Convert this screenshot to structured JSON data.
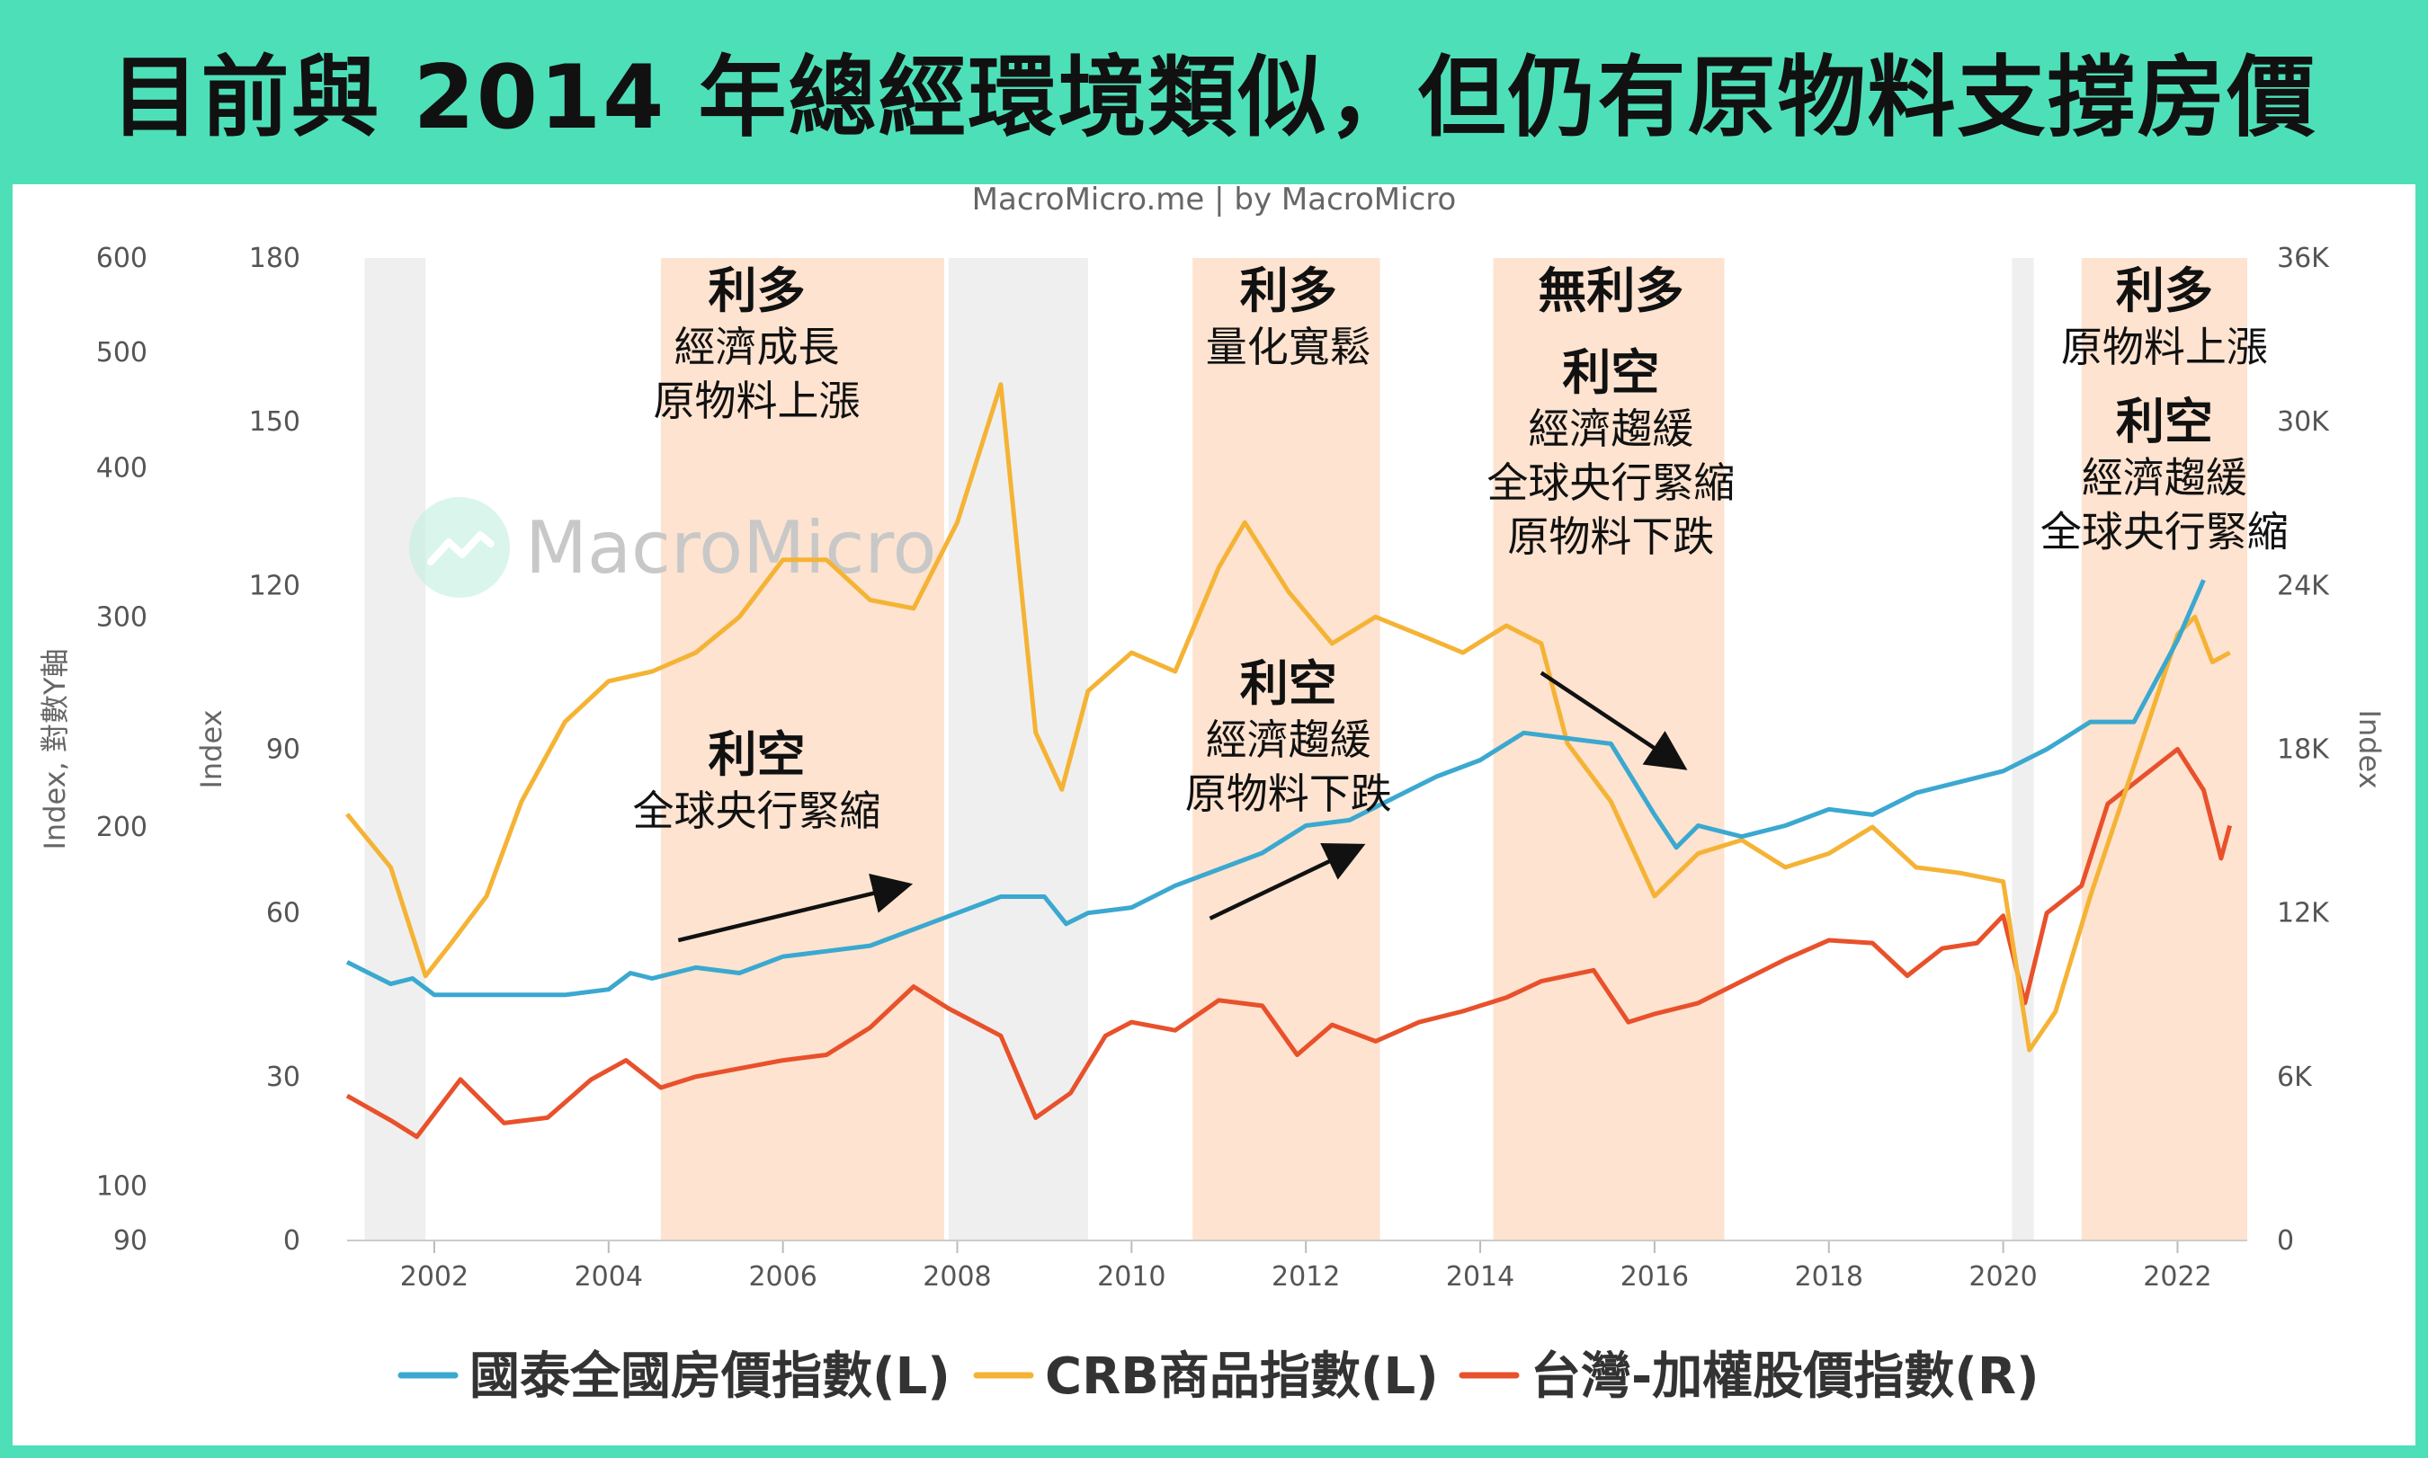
{
  "page": {
    "title": "目前與 2014 年總經環境類似，但仍有原物料支撐房價",
    "credit": "MacroMicro.me | by MacroMicro",
    "watermark": "MacroMicro"
  },
  "colors": {
    "house": "#3ba8d0",
    "crb": "#f5b335",
    "taiex": "#e8512b",
    "highlight": "#fde3d0",
    "recession": "#efefef"
  },
  "chart_data": {
    "type": "line",
    "axes": {
      "left_outer": {
        "title": "Index, 對數Y軸",
        "ticks": [
          "600",
          "500",
          "400",
          "300",
          "200",
          "100",
          "90"
        ],
        "scale": "log",
        "range": [
          90,
          600
        ]
      },
      "left_inner": {
        "title": "Index",
        "ticks": [
          "180",
          "150",
          "120",
          "90",
          "60",
          "30",
          "0"
        ],
        "range": [
          0,
          180
        ]
      },
      "right": {
        "title": "Index",
        "ticks": [
          "36K",
          "30K",
          "24K",
          "18K",
          "12K",
          "6K",
          "0"
        ],
        "range": [
          0,
          36000
        ]
      },
      "x": {
        "ticks": [
          "2002",
          "2004",
          "2006",
          "2008",
          "2010",
          "2012",
          "2014",
          "2016",
          "2018",
          "2020",
          "2022"
        ],
        "range": [
          2001.0,
          2022.8
        ]
      }
    },
    "recession_bands": [
      [
        2001.2,
        2001.9
      ],
      [
        2007.9,
        2009.5
      ],
      [
        2020.1,
        2020.35
      ]
    ],
    "highlight_bands": [
      [
        2004.6,
        2007.85
      ],
      [
        2010.7,
        2012.85
      ],
      [
        2014.15,
        2016.8
      ],
      [
        2020.9,
        2022.9
      ]
    ],
    "series": [
      {
        "name": "國泰全國房價指數(L)",
        "axis": "left_inner",
        "color": "#3ba8d0",
        "points": [
          [
            2001.0,
            51
          ],
          [
            2001.25,
            49
          ],
          [
            2001.5,
            47
          ],
          [
            2001.75,
            48
          ],
          [
            2002.0,
            45
          ],
          [
            2002.5,
            45
          ],
          [
            2003.0,
            45
          ],
          [
            2003.5,
            45
          ],
          [
            2004.0,
            46
          ],
          [
            2004.25,
            49
          ],
          [
            2004.5,
            48
          ],
          [
            2005.0,
            50
          ],
          [
            2005.5,
            49
          ],
          [
            2006.0,
            52
          ],
          [
            2006.5,
            53
          ],
          [
            2007.0,
            54
          ],
          [
            2007.5,
            57
          ],
          [
            2008.0,
            60
          ],
          [
            2008.5,
            63
          ],
          [
            2009.0,
            63
          ],
          [
            2009.25,
            58
          ],
          [
            2009.5,
            60
          ],
          [
            2010.0,
            61
          ],
          [
            2010.5,
            65
          ],
          [
            2011.0,
            68
          ],
          [
            2011.5,
            71
          ],
          [
            2012.0,
            76
          ],
          [
            2012.5,
            77
          ],
          [
            2013.0,
            81
          ],
          [
            2013.5,
            85
          ],
          [
            2014.0,
            88
          ],
          [
            2014.5,
            93
          ],
          [
            2015.0,
            92
          ],
          [
            2015.5,
            91
          ],
          [
            2016.0,
            78
          ],
          [
            2016.25,
            72
          ],
          [
            2016.5,
            76
          ],
          [
            2017.0,
            74
          ],
          [
            2017.5,
            76
          ],
          [
            2018.0,
            79
          ],
          [
            2018.5,
            78
          ],
          [
            2019.0,
            82
          ],
          [
            2019.5,
            84
          ],
          [
            2020.0,
            86
          ],
          [
            2020.5,
            90
          ],
          [
            2021.0,
            95
          ],
          [
            2021.5,
            95
          ],
          [
            2022.0,
            110
          ],
          [
            2022.3,
            121
          ]
        ]
      },
      {
        "name": "CRB商品指數(L)",
        "axis": "left_outer",
        "color": "#f5b335",
        "points": [
          [
            2001.0,
            205
          ],
          [
            2001.5,
            185
          ],
          [
            2001.9,
            150
          ],
          [
            2002.2,
            160
          ],
          [
            2002.6,
            175
          ],
          [
            2003.0,
            210
          ],
          [
            2003.5,
            245
          ],
          [
            2004.0,
            265
          ],
          [
            2004.5,
            270
          ],
          [
            2005.0,
            280
          ],
          [
            2005.5,
            300
          ],
          [
            2006.0,
            335
          ],
          [
            2006.5,
            335
          ],
          [
            2007.0,
            310
          ],
          [
            2007.5,
            305
          ],
          [
            2008.0,
            360
          ],
          [
            2008.5,
            470
          ],
          [
            2008.9,
            240
          ],
          [
            2009.2,
            215
          ],
          [
            2009.5,
            260
          ],
          [
            2010.0,
            280
          ],
          [
            2010.5,
            270
          ],
          [
            2011.0,
            330
          ],
          [
            2011.3,
            360
          ],
          [
            2011.8,
            315
          ],
          [
            2012.3,
            285
          ],
          [
            2012.8,
            300
          ],
          [
            2013.3,
            290
          ],
          [
            2013.8,
            280
          ],
          [
            2014.3,
            295
          ],
          [
            2014.7,
            285
          ],
          [
            2015.0,
            235
          ],
          [
            2015.5,
            210
          ],
          [
            2016.0,
            175
          ],
          [
            2016.5,
            190
          ],
          [
            2017.0,
            195
          ],
          [
            2017.5,
            185
          ],
          [
            2018.0,
            190
          ],
          [
            2018.5,
            200
          ],
          [
            2019.0,
            185
          ],
          [
            2019.5,
            183
          ],
          [
            2020.0,
            180
          ],
          [
            2020.3,
            130
          ],
          [
            2020.6,
            140
          ],
          [
            2021.0,
            175
          ],
          [
            2021.5,
            225
          ],
          [
            2022.0,
            290
          ],
          [
            2022.2,
            300
          ],
          [
            2022.4,
            275
          ],
          [
            2022.6,
            280
          ]
        ]
      },
      {
        "name": "台灣-加權股價指數(R)",
        "axis": "right",
        "color": "#e8512b",
        "points": [
          [
            2001.0,
            5300
          ],
          [
            2001.5,
            4400
          ],
          [
            2001.8,
            3800
          ],
          [
            2002.3,
            5900
          ],
          [
            2002.8,
            4300
          ],
          [
            2003.3,
            4500
          ],
          [
            2003.8,
            5900
          ],
          [
            2004.2,
            6600
          ],
          [
            2004.6,
            5600
          ],
          [
            2005.0,
            6000
          ],
          [
            2005.5,
            6300
          ],
          [
            2006.0,
            6600
          ],
          [
            2006.5,
            6800
          ],
          [
            2007.0,
            7800
          ],
          [
            2007.5,
            9300
          ],
          [
            2007.9,
            8500
          ],
          [
            2008.5,
            7500
          ],
          [
            2008.9,
            4500
          ],
          [
            2009.3,
            5400
          ],
          [
            2009.7,
            7500
          ],
          [
            2010.0,
            8000
          ],
          [
            2010.5,
            7700
          ],
          [
            2011.0,
            8800
          ],
          [
            2011.5,
            8600
          ],
          [
            2011.9,
            6800
          ],
          [
            2012.3,
            7900
          ],
          [
            2012.8,
            7300
          ],
          [
            2013.3,
            8000
          ],
          [
            2013.8,
            8400
          ],
          [
            2014.3,
            8900
          ],
          [
            2014.7,
            9500
          ],
          [
            2015.3,
            9900
          ],
          [
            2015.7,
            8000
          ],
          [
            2016.0,
            8300
          ],
          [
            2016.5,
            8700
          ],
          [
            2017.0,
            9500
          ],
          [
            2017.5,
            10300
          ],
          [
            2018.0,
            11000
          ],
          [
            2018.5,
            10900
          ],
          [
            2018.9,
            9700
          ],
          [
            2019.3,
            10700
          ],
          [
            2019.7,
            10900
          ],
          [
            2020.0,
            11900
          ],
          [
            2020.25,
            8700
          ],
          [
            2020.5,
            12000
          ],
          [
            2020.9,
            13000
          ],
          [
            2021.2,
            16000
          ],
          [
            2021.6,
            17000
          ],
          [
            2022.0,
            18000
          ],
          [
            2022.3,
            16500
          ],
          [
            2022.5,
            14000
          ],
          [
            2022.6,
            15200
          ]
        ]
      }
    ],
    "annotations": [
      {
        "x": 2005.7,
        "y": 180,
        "head": "利多",
        "lines": [
          "經濟成長",
          "原物料上漲"
        ]
      },
      {
        "x": 2005.7,
        "y": 95,
        "head": "利空",
        "lines": [
          "全球央行緊縮"
        ]
      },
      {
        "x": 2011.8,
        "y": 180,
        "head": "利多",
        "lines": [
          "量化寬鬆"
        ]
      },
      {
        "x": 2011.8,
        "y": 108,
        "head": "利空",
        "lines": [
          "經濟趨緩",
          "原物料下跌"
        ]
      },
      {
        "x": 2015.5,
        "y": 180,
        "head": "無利多",
        "lines": []
      },
      {
        "x": 2015.5,
        "y": 165,
        "head": "利空",
        "lines": [
          "經濟趨緩",
          "全球央行緊縮",
          "原物料下跌"
        ]
      },
      {
        "x": 2021.85,
        "y": 180,
        "head": "利多",
        "lines": [
          "原物料上漲"
        ]
      },
      {
        "x": 2021.85,
        "y": 156,
        "head": "利空",
        "lines": [
          "經濟趨緩",
          "全球央行緊縮"
        ]
      }
    ],
    "arrows": [
      {
        "from": [
          2004.8,
          55
        ],
        "to": [
          2007.4,
          65
        ]
      },
      {
        "from": [
          2010.9,
          59
        ],
        "to": [
          2012.6,
          72
        ]
      },
      {
        "from": [
          2014.7,
          104
        ],
        "to": [
          2016.3,
          87
        ]
      }
    ],
    "legend": {
      "placement": "bottom"
    }
  }
}
